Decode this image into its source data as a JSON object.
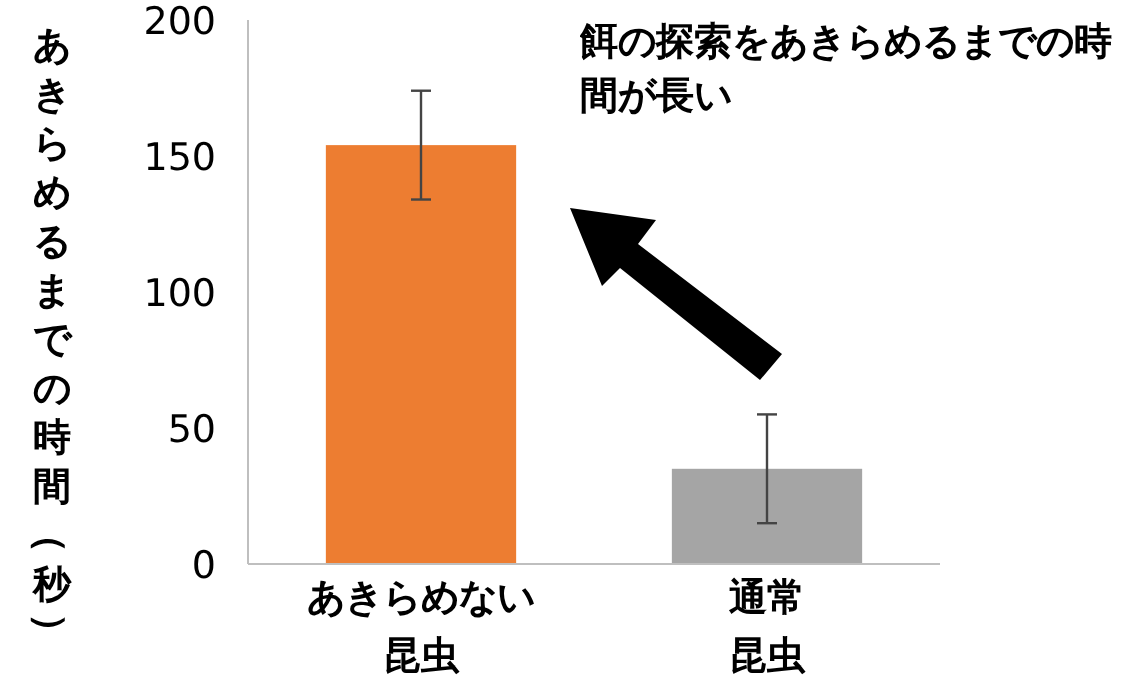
{
  "chart_data": {
    "type": "bar",
    "ylabel": "あきらめるまでの時間（秒）",
    "categories": [
      "あきらめない昆虫",
      "通常昆虫"
    ],
    "values": [
      154,
      35
    ],
    "colors": [
      "#ed7d31",
      "#a5a5a5"
    ],
    "errors": [
      20,
      20
    ],
    "ylim": [
      0,
      200
    ],
    "yticks": [
      0,
      50,
      100,
      150,
      200
    ],
    "grid": false,
    "legend": false,
    "annotations": [
      "餌の探索をあきらめるまでの時間が長い"
    ]
  }
}
